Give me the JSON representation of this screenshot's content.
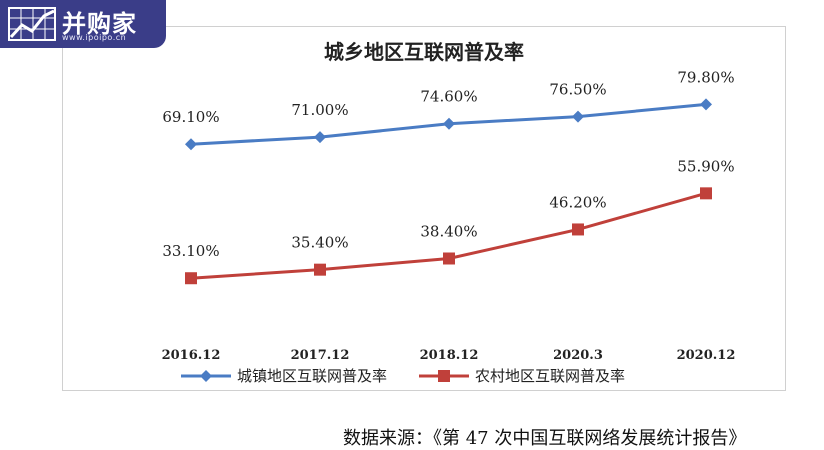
{
  "logo": {
    "name": "并购家",
    "url": "www.ipoipo.cn",
    "icon": "bar-chart-icon",
    "color": "#3a3d88"
  },
  "chart_data": {
    "type": "line",
    "title": "城乡地区互联网普及率",
    "categories": [
      "2016.12",
      "2017.12",
      "2018.12",
      "2020.3",
      "2020.12"
    ],
    "series": [
      {
        "name": "城镇地区互联网普及率",
        "values": [
          69.1,
          71.0,
          74.6,
          76.5,
          79.8
        ],
        "labels": [
          "69.10%",
          "71.00%",
          "74.60%",
          "76.50%",
          "79.80%"
        ],
        "color": "#4a7cc4",
        "marker": "diamond"
      },
      {
        "name": "农村地区互联网普及率",
        "values": [
          33.1,
          35.4,
          38.4,
          46.2,
          55.9
        ],
        "labels": [
          "33.10%",
          "35.40%",
          "38.40%",
          "46.20%",
          "55.90%"
        ],
        "color": "#c0403a",
        "marker": "square"
      }
    ],
    "xlabel": "",
    "ylabel": "",
    "ylim": [
      20,
      85
    ],
    "grid": false,
    "legend": "bottom"
  },
  "source": "数据来源：《第 47 次中国互联网络发展统计报告》"
}
